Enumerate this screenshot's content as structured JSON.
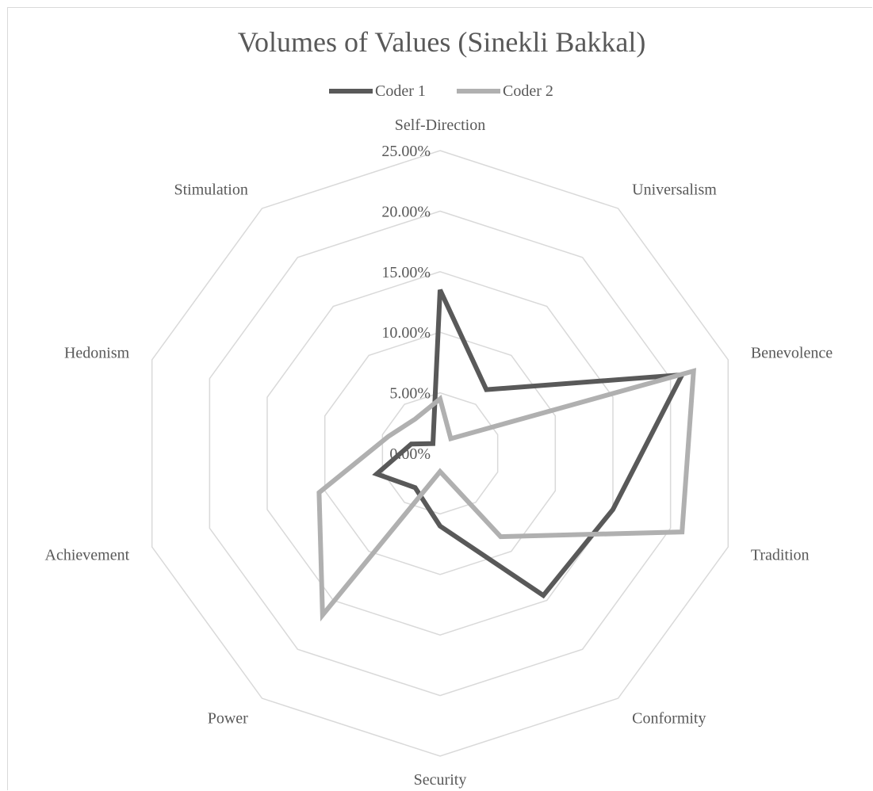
{
  "chart_data": {
    "type": "radar",
    "title": "Volumes of Values (Sinekli Bakkal)",
    "categories": [
      "Self-Direction",
      "Universalism",
      "Benevolence",
      "Tradition",
      "Conformity",
      "Security",
      "Power",
      "Achievement",
      "Hedonism",
      "Stimulation"
    ],
    "tick_labels": [
      "0.00%",
      "5.00%",
      "10.00%",
      "15.00%",
      "20.00%",
      "25.00%"
    ],
    "rlim": [
      0,
      25
    ],
    "grid": true,
    "legend_position": "top",
    "series": [
      {
        "name": "Coder 1",
        "color": "#595959",
        "values": [
          13.5,
          6.5,
          21.0,
          15.0,
          14.5,
          6.0,
          3.5,
          5.5,
          2.5,
          1.0
        ]
      },
      {
        "name": "Coder 2",
        "color": "#b0b0b0",
        "values": [
          4.5,
          1.5,
          22.0,
          21.0,
          8.5,
          1.5,
          16.5,
          10.5,
          4.5,
          3.5
        ]
      }
    ]
  }
}
